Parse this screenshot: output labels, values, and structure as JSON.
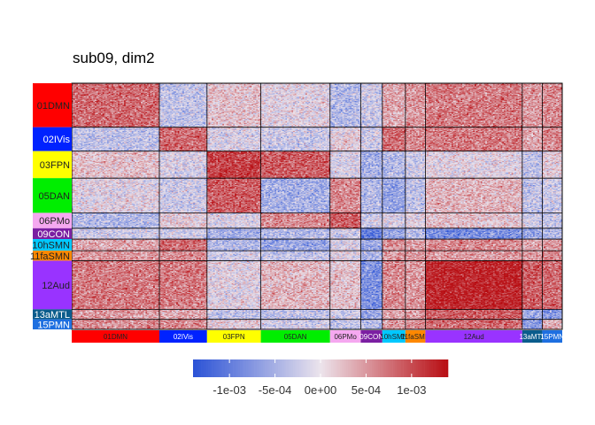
{
  "chart_data": {
    "type": "heatmap",
    "title": "sub09, dim2",
    "networks": [
      {
        "label": "01DMN",
        "color": "#ff0000",
        "size": 57,
        "text_color": "#222222"
      },
      {
        "label": "02IVis",
        "color": "#0022ff",
        "size": 31,
        "text_color": "#ffffff"
      },
      {
        "label": "03FPN",
        "color": "#ffff00",
        "size": 35,
        "text_color": "#222222"
      },
      {
        "label": "05DAN",
        "color": "#00ee00",
        "size": 45,
        "text_color": "#222222"
      },
      {
        "label": "06PMo",
        "color": "#f5a8f0",
        "size": 20,
        "text_color": "#222222"
      },
      {
        "label": "09CON",
        "color": "#7b1fa2",
        "size": 14,
        "text_color": "#ffffff"
      },
      {
        "label": "10hSMN",
        "color": "#00c8ff",
        "size": 15,
        "text_color": "#222222"
      },
      {
        "label": "11faSMN",
        "color": "#ff8800",
        "size": 13,
        "text_color": "#222222"
      },
      {
        "label": "12Aud",
        "color": "#9933ff",
        "size": 63,
        "text_color": "#222222"
      },
      {
        "label": "13aMTL",
        "color": "#0a5c8c",
        "size": 13,
        "text_color": "#ffffff"
      },
      {
        "label": "15PMN",
        "color": "#1e6fe0",
        "size": 13,
        "text_color": "#ffffff"
      }
    ],
    "block_values": [
      [
        0.0008,
        -0.0003,
        0.0002,
        0.0,
        -0.0004,
        -0.0002,
        0.0004,
        0.0005,
        0.0007,
        0.0005,
        0.0006
      ],
      [
        -0.0003,
        0.0008,
        -0.0001,
        -0.0002,
        0.0001,
        -0.0002,
        0.0008,
        0.0006,
        0.0007,
        0.0004,
        0.0006
      ],
      [
        0.0002,
        -0.0001,
        0.0011,
        0.0009,
        -0.0001,
        -0.0005,
        -0.0004,
        -0.0002,
        0.0,
        -0.0003,
        0.0001
      ],
      [
        0.0,
        -0.0002,
        0.0009,
        -0.0005,
        0.0006,
        -0.0004,
        -0.0006,
        -0.0003,
        0.0003,
        -0.0003,
        -0.0002
      ],
      [
        -0.0004,
        0.0001,
        -0.0001,
        0.0006,
        0.0009,
        -0.0002,
        -0.0001,
        0.0,
        0.0002,
        -0.0002,
        -0.0003
      ],
      [
        -0.0002,
        -0.0002,
        -0.0005,
        -0.0004,
        -0.0002,
        -0.001,
        -0.0006,
        -0.0004,
        -0.0008,
        -0.0006,
        -0.0004
      ],
      [
        0.0004,
        0.0008,
        -0.0004,
        -0.0006,
        -0.0001,
        -0.0006,
        0.0006,
        0.0005,
        0.0006,
        0.0004,
        0.0005
      ],
      [
        0.0005,
        0.0006,
        -0.0002,
        -0.0003,
        0.0,
        -0.0004,
        0.0005,
        0.0005,
        0.0005,
        0.0005,
        0.0006
      ],
      [
        0.0007,
        0.0007,
        0.0,
        0.0003,
        0.0002,
        -0.0008,
        0.0006,
        0.0005,
        0.0013,
        0.0009,
        0.0008
      ],
      [
        0.0005,
        0.0004,
        -0.0003,
        -0.0003,
        -0.0002,
        -0.0006,
        0.0004,
        0.0005,
        0.0009,
        -0.0006,
        -0.0007
      ],
      [
        0.0006,
        0.0006,
        0.0001,
        -0.0002,
        -0.0003,
        -0.0004,
        0.0005,
        0.0006,
        0.0008,
        -0.0007,
        0.0003
      ]
    ],
    "colorbar": {
      "low_color": "#2a52d6",
      "mid_color": "#ece4ec",
      "high_color": "#b80d12",
      "range": [
        -0.0014,
        0.0014
      ],
      "ticks": [
        -0.001,
        -0.0005,
        0,
        0.0005,
        0.001
      ],
      "tick_labels": [
        "-1e-03",
        "-5e-04",
        "0e+00",
        "5e-04",
        "1e-03"
      ]
    },
    "legend_position": "bottom"
  }
}
